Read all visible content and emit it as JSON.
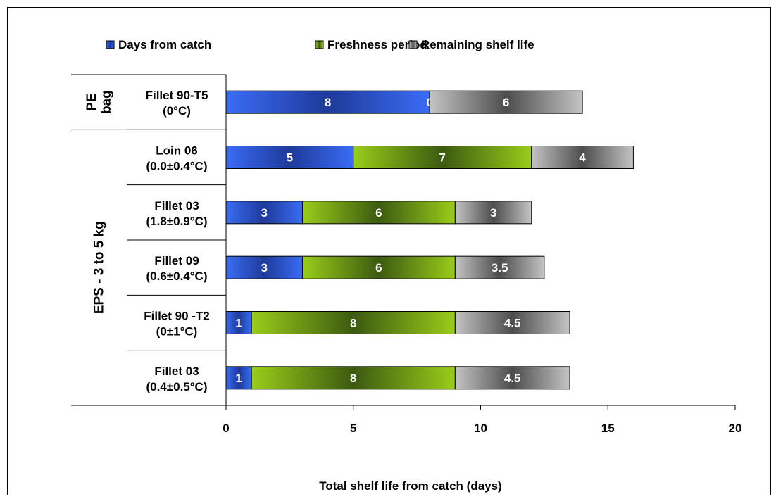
{
  "chart_data": {
    "type": "bar",
    "orientation": "horizontal",
    "stacked": true,
    "categories": [
      "Fillet 90-T5 (0°C)",
      "Loin 06 (0.0±0.4°C)",
      "Fillet 03 (1.8±0.9°C)",
      "Fillet 09 (0.6±0.4°C)",
      "Fillet 90 -T2 (0±1°C)",
      "Fillet 03 (0.4±0.5°C)"
    ],
    "category_lines": [
      [
        "Fillet 90-T5",
        "(0°C)"
      ],
      [
        "Loin 06",
        "(0.0±0.4°C)"
      ],
      [
        "Fillet 03",
        "(1.8±0.9°C)"
      ],
      [
        "Fillet 09",
        "(0.6±0.4°C)"
      ],
      [
        "Fillet 90 -T2",
        "(0±1°C)"
      ],
      [
        "Fillet 03",
        "(0.4±0.5°C)"
      ]
    ],
    "groups": [
      {
        "lines": [
          "PE",
          "bag"
        ],
        "categories": [
          0
        ]
      },
      {
        "lines": [
          "EPS - 3 to 5 kg"
        ],
        "categories": [
          1,
          2,
          3,
          4,
          5
        ]
      }
    ],
    "series": [
      {
        "name": "Days from catch",
        "values": [
          8,
          5,
          3,
          3,
          1,
          1
        ],
        "labels": [
          "8",
          "5",
          "3",
          "3",
          "1",
          "1"
        ]
      },
      {
        "name": "Freshness period",
        "values": [
          0,
          7,
          6,
          6,
          8,
          8
        ],
        "labels": [
          "0",
          "7",
          "6",
          "6",
          "8",
          "8"
        ]
      },
      {
        "name": "Remaining shelf life",
        "values": [
          6,
          4,
          3,
          3.5,
          4.5,
          4.5
        ],
        "labels": [
          "6",
          "4",
          "3",
          "3.5",
          "4.5",
          "4.5"
        ]
      }
    ],
    "xlabel": "Total shelf life from catch (days)",
    "ylabel": "",
    "xlim": [
      0,
      20
    ],
    "xticks": [
      0,
      5,
      10,
      15,
      20
    ],
    "grid": false,
    "legend": "top",
    "colors": {
      "Days from catch": {
        "dark": "#1e3a9a",
        "light": "#3a6cf4"
      },
      "Freshness period": {
        "dark": "#3c5a10",
        "light": "#9acd1a"
      },
      "Remaining shelf life": {
        "dark": "#4d4d4d",
        "light": "#c4c4c4"
      }
    }
  }
}
